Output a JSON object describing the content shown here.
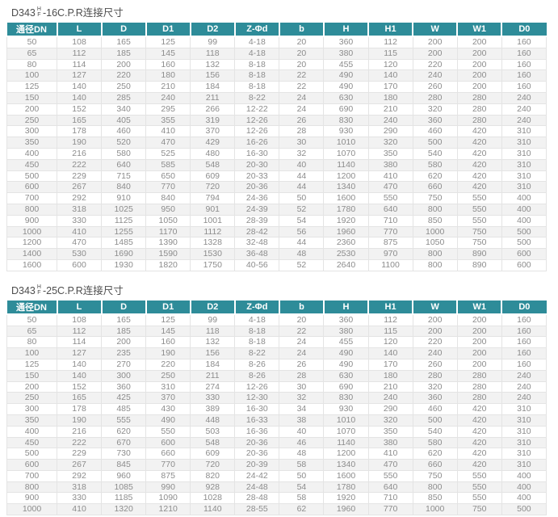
{
  "colors": {
    "header_bg": "#2e8c99",
    "header_text": "#ffffff",
    "row_alt_bg": "#f2f2f2",
    "cell_text": "#8c8c8c",
    "title_text": "#4d4d4d",
    "border": "#e4e4e4"
  },
  "titles": {
    "t1": {
      "model": "D343",
      "top": "H",
      "bottom": "F",
      "rest": "-16C.P.R连接尺寸"
    },
    "t2": {
      "model": "D343",
      "top": "H",
      "bottom": "F",
      "rest": "-25C.P.R连接尺寸"
    }
  },
  "columns": [
    "通径DN",
    "L",
    "D",
    "D1",
    "D2",
    "Z-Φd",
    "b",
    "H",
    "H1",
    "W",
    "W1",
    "D0"
  ],
  "table1_rows": [
    [
      50,
      108,
      165,
      125,
      99,
      "4-18",
      20,
      360,
      112,
      200,
      200,
      160
    ],
    [
      65,
      112,
      185,
      145,
      118,
      "4-18",
      20,
      380,
      115,
      200,
      200,
      160
    ],
    [
      80,
      114,
      200,
      160,
      132,
      "8-18",
      20,
      455,
      120,
      220,
      200,
      160
    ],
    [
      100,
      127,
      220,
      180,
      156,
      "8-18",
      22,
      490,
      140,
      240,
      200,
      160
    ],
    [
      125,
      140,
      250,
      210,
      184,
      "8-18",
      22,
      490,
      170,
      260,
      200,
      160
    ],
    [
      150,
      140,
      285,
      240,
      211,
      "8-22",
      24,
      630,
      180,
      280,
      280,
      240
    ],
    [
      200,
      152,
      340,
      295,
      266,
      "12-22",
      24,
      690,
      210,
      320,
      280,
      240
    ],
    [
      250,
      165,
      405,
      355,
      319,
      "12-26",
      26,
      830,
      240,
      360,
      280,
      240
    ],
    [
      300,
      178,
      460,
      410,
      370,
      "12-26",
      28,
      930,
      290,
      460,
      420,
      310
    ],
    [
      350,
      190,
      520,
      470,
      429,
      "16-26",
      30,
      1010,
      320,
      500,
      420,
      310
    ],
    [
      400,
      216,
      580,
      525,
      480,
      "16-30",
      32,
      1070,
      350,
      540,
      420,
      310
    ],
    [
      450,
      222,
      640,
      585,
      548,
      "20-30",
      40,
      1140,
      380,
      580,
      420,
      310
    ],
    [
      500,
      229,
      715,
      650,
      609,
      "20-33",
      44,
      1200,
      410,
      620,
      420,
      310
    ],
    [
      600,
      267,
      840,
      770,
      720,
      "20-36",
      44,
      1340,
      470,
      660,
      420,
      310
    ],
    [
      700,
      292,
      910,
      840,
      794,
      "24-36",
      50,
      1600,
      550,
      750,
      550,
      400
    ],
    [
      800,
      318,
      1025,
      950,
      901,
      "24-39",
      52,
      1780,
      640,
      800,
      550,
      400
    ],
    [
      900,
      330,
      1125,
      1050,
      1001,
      "28-39",
      54,
      1920,
      710,
      850,
      550,
      400
    ],
    [
      1000,
      410,
      1255,
      1170,
      1112,
      "28-42",
      56,
      1960,
      770,
      1000,
      750,
      500
    ],
    [
      1200,
      470,
      1485,
      1390,
      1328,
      "32-48",
      44,
      2360,
      875,
      1050,
      750,
      500
    ],
    [
      1400,
      530,
      1690,
      1590,
      1530,
      "36-48",
      48,
      2530,
      970,
      800,
      890,
      600
    ],
    [
      1600,
      600,
      1930,
      1820,
      1750,
      "40-56",
      52,
      2640,
      1100,
      800,
      890,
      600
    ]
  ],
  "table2_rows": [
    [
      50,
      108,
      165,
      125,
      99,
      "4-18",
      20,
      360,
      112,
      200,
      200,
      160
    ],
    [
      65,
      112,
      185,
      145,
      118,
      "8-18",
      22,
      380,
      115,
      200,
      200,
      160
    ],
    [
      80,
      114,
      200,
      160,
      132,
      "8-18",
      24,
      455,
      120,
      220,
      200,
      160
    ],
    [
      100,
      127,
      235,
      190,
      156,
      "8-22",
      24,
      490,
      140,
      240,
      200,
      160
    ],
    [
      125,
      140,
      270,
      220,
      184,
      "8-26",
      26,
      490,
      170,
      260,
      200,
      160
    ],
    [
      150,
      140,
      300,
      250,
      211,
      "8-26",
      28,
      630,
      180,
      280,
      280,
      240
    ],
    [
      200,
      152,
      360,
      310,
      274,
      "12-26",
      30,
      690,
      210,
      320,
      280,
      240
    ],
    [
      250,
      165,
      425,
      370,
      330,
      "12-30",
      32,
      830,
      240,
      360,
      280,
      240
    ],
    [
      300,
      178,
      485,
      430,
      389,
      "16-30",
      34,
      930,
      290,
      460,
      420,
      310
    ],
    [
      350,
      190,
      555,
      490,
      448,
      "16-33",
      38,
      1010,
      320,
      500,
      420,
      310
    ],
    [
      400,
      216,
      620,
      550,
      503,
      "16-36",
      40,
      1070,
      350,
      540,
      420,
      310
    ],
    [
      450,
      222,
      670,
      600,
      548,
      "20-36",
      46,
      1140,
      380,
      580,
      420,
      310
    ],
    [
      500,
      229,
      730,
      660,
      609,
      "20-36",
      48,
      1200,
      410,
      620,
      420,
      310
    ],
    [
      600,
      267,
      845,
      770,
      720,
      "20-39",
      58,
      1340,
      470,
      660,
      420,
      310
    ],
    [
      700,
      292,
      960,
      875,
      820,
      "24-42",
      50,
      1600,
      550,
      750,
      550,
      400
    ],
    [
      800,
      318,
      1085,
      990,
      928,
      "24-48",
      54,
      1780,
      640,
      800,
      550,
      400
    ],
    [
      900,
      330,
      1185,
      1090,
      1028,
      "28-48",
      58,
      1920,
      710,
      850,
      550,
      400
    ],
    [
      1000,
      410,
      1320,
      1210,
      1140,
      "28-55",
      62,
      1960,
      770,
      1000,
      750,
      500
    ]
  ]
}
